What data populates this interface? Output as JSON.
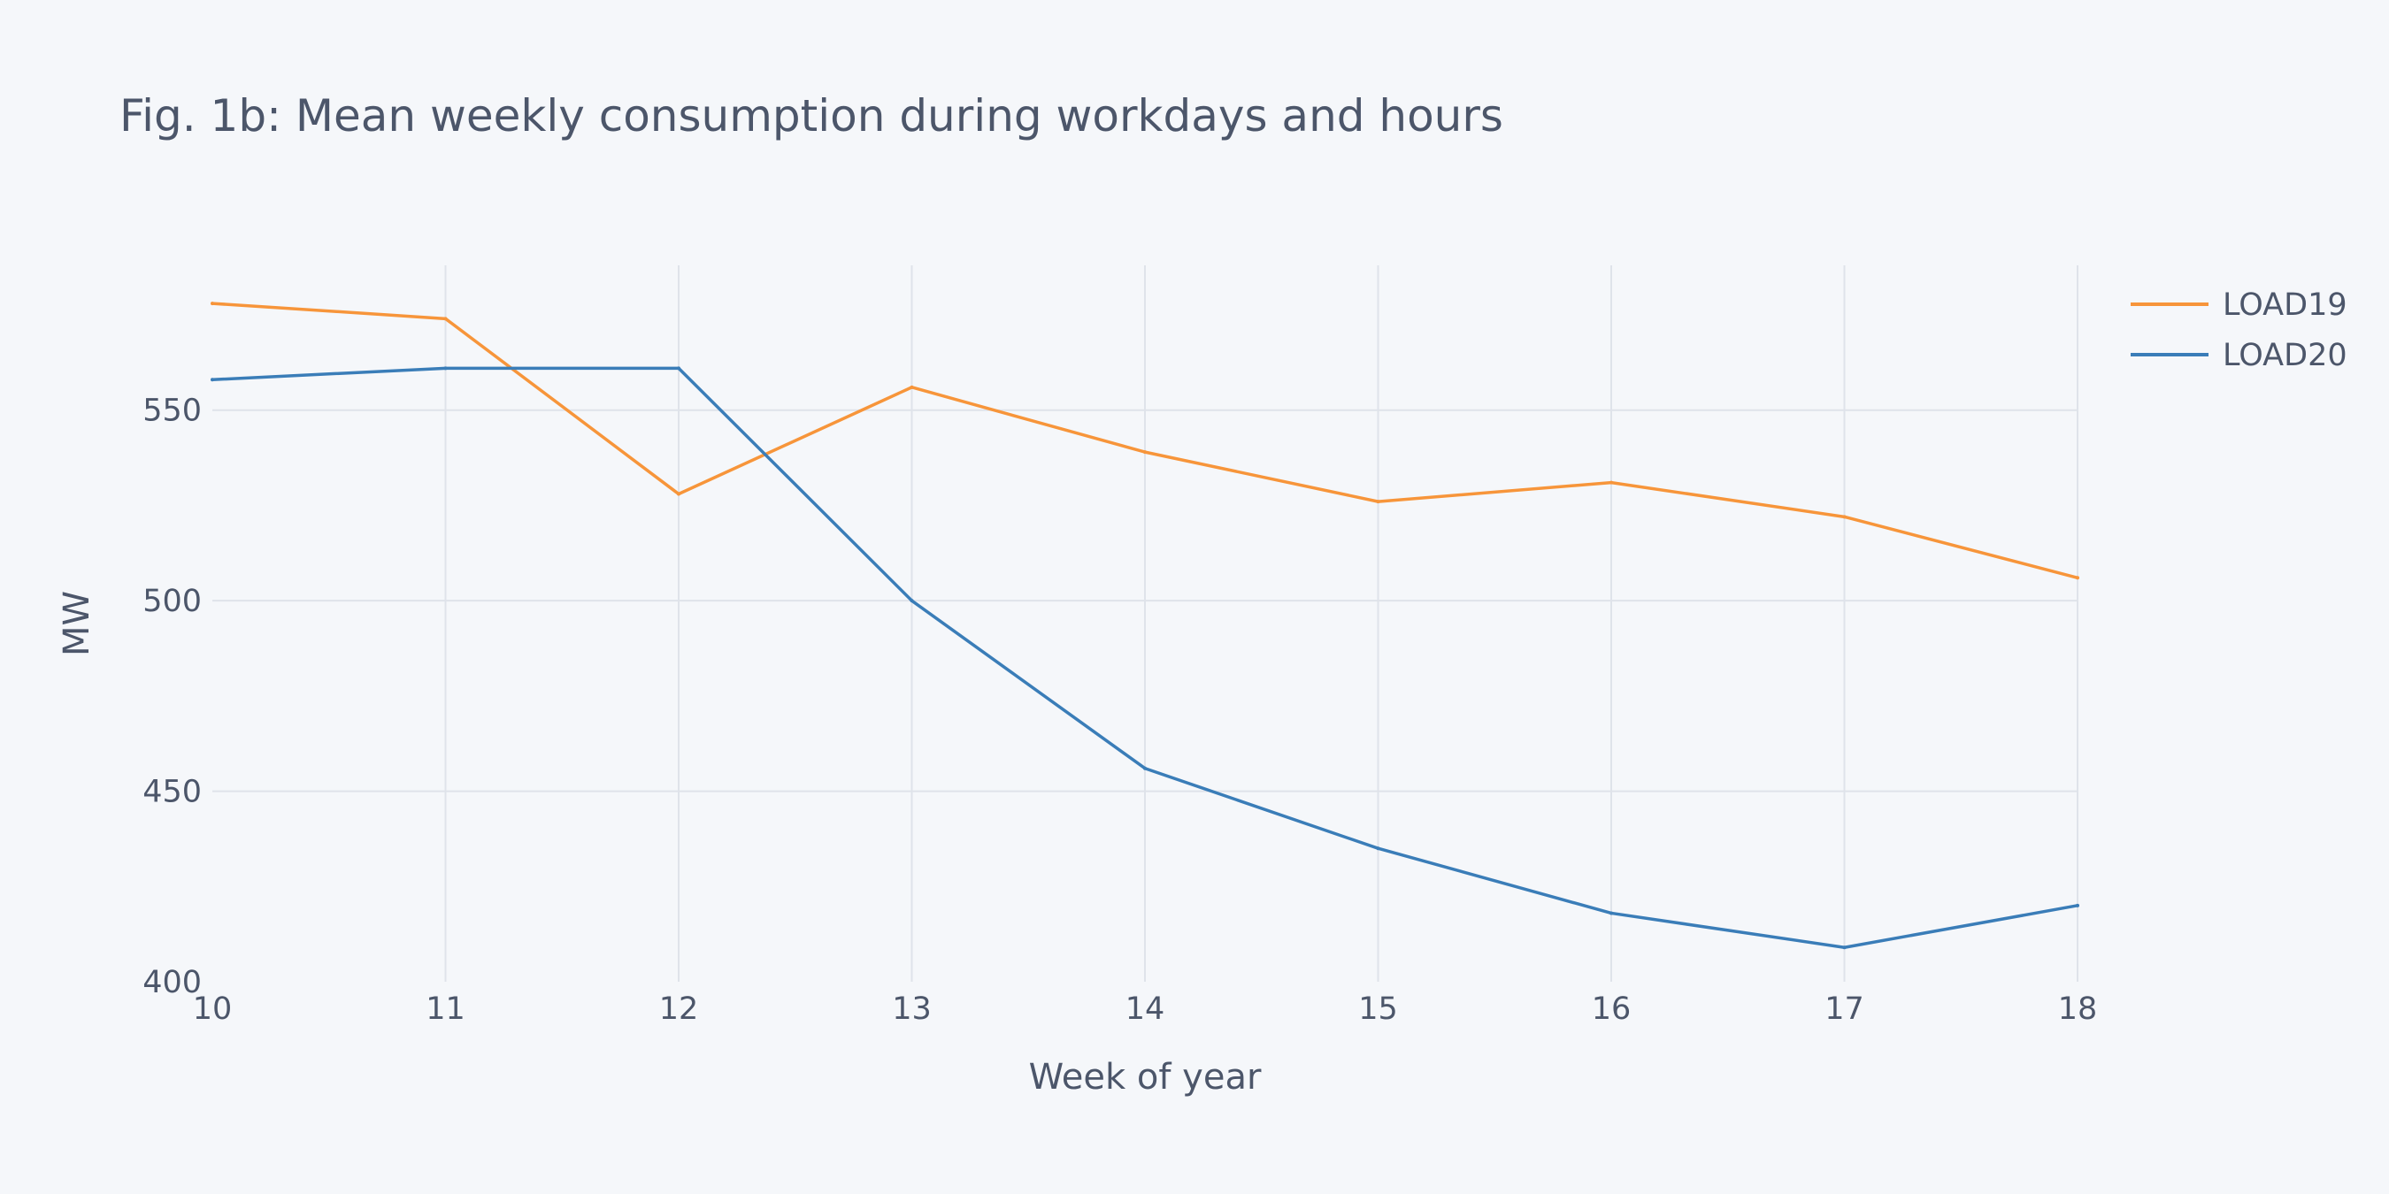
{
  "chart_data": {
    "type": "line",
    "title": "Fig. 1b: Mean weekly consumption during workdays and hours",
    "xlabel": "Week of year",
    "ylabel": "MW",
    "x": [
      10,
      11,
      12,
      13,
      14,
      15,
      16,
      17,
      18
    ],
    "xlim": [
      10,
      18
    ],
    "ylim": [
      400,
      588
    ],
    "x_ticks": [
      "10",
      "11",
      "12",
      "13",
      "14",
      "15",
      "16",
      "17",
      "18"
    ],
    "y_ticks": [
      400,
      450,
      500,
      550
    ],
    "y_tick_labels": [
      "400",
      "450",
      "500",
      "550"
    ],
    "grid": true,
    "legend_position": "top-right",
    "series": [
      {
        "name": "LOAD19",
        "color": "#f7953a",
        "values": [
          578,
          574,
          528,
          556,
          539,
          526,
          531,
          522,
          506
        ]
      },
      {
        "name": "LOAD20",
        "color": "#3a7db8",
        "values": [
          558,
          561,
          561,
          500,
          456,
          435,
          418,
          409,
          420
        ]
      }
    ]
  }
}
